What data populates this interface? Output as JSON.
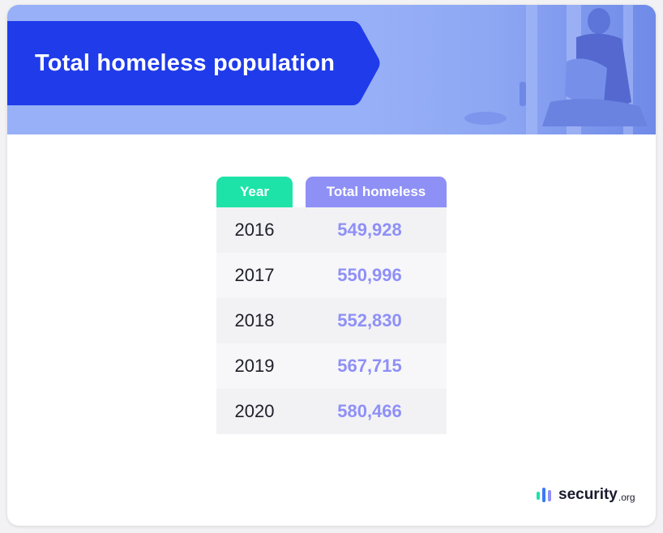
{
  "title": "Total homeless population",
  "table": {
    "headers": [
      "Year",
      "Total homeless"
    ],
    "rows": [
      {
        "year": "2016",
        "total": "549,928"
      },
      {
        "year": "2017",
        "total": "550,996"
      },
      {
        "year": "2018",
        "total": "552,830"
      },
      {
        "year": "2019",
        "total": "567,715"
      },
      {
        "year": "2020",
        "total": "580,466"
      }
    ]
  },
  "brand": {
    "name": "security",
    "tld": ".org"
  },
  "colors": {
    "banner": "#97b0f7",
    "title_bg": "#1f3bea",
    "year_header": "#1ee3a8",
    "total_header": "#8f90f6",
    "value_text": "#8f90f6"
  },
  "chart_data": {
    "type": "table",
    "columns": [
      "Year",
      "Total homeless"
    ],
    "categories": [
      "2016",
      "2017",
      "2018",
      "2019",
      "2020"
    ],
    "values": [
      549928,
      550996,
      552830,
      567715,
      580466
    ],
    "title": "Total homeless population"
  }
}
